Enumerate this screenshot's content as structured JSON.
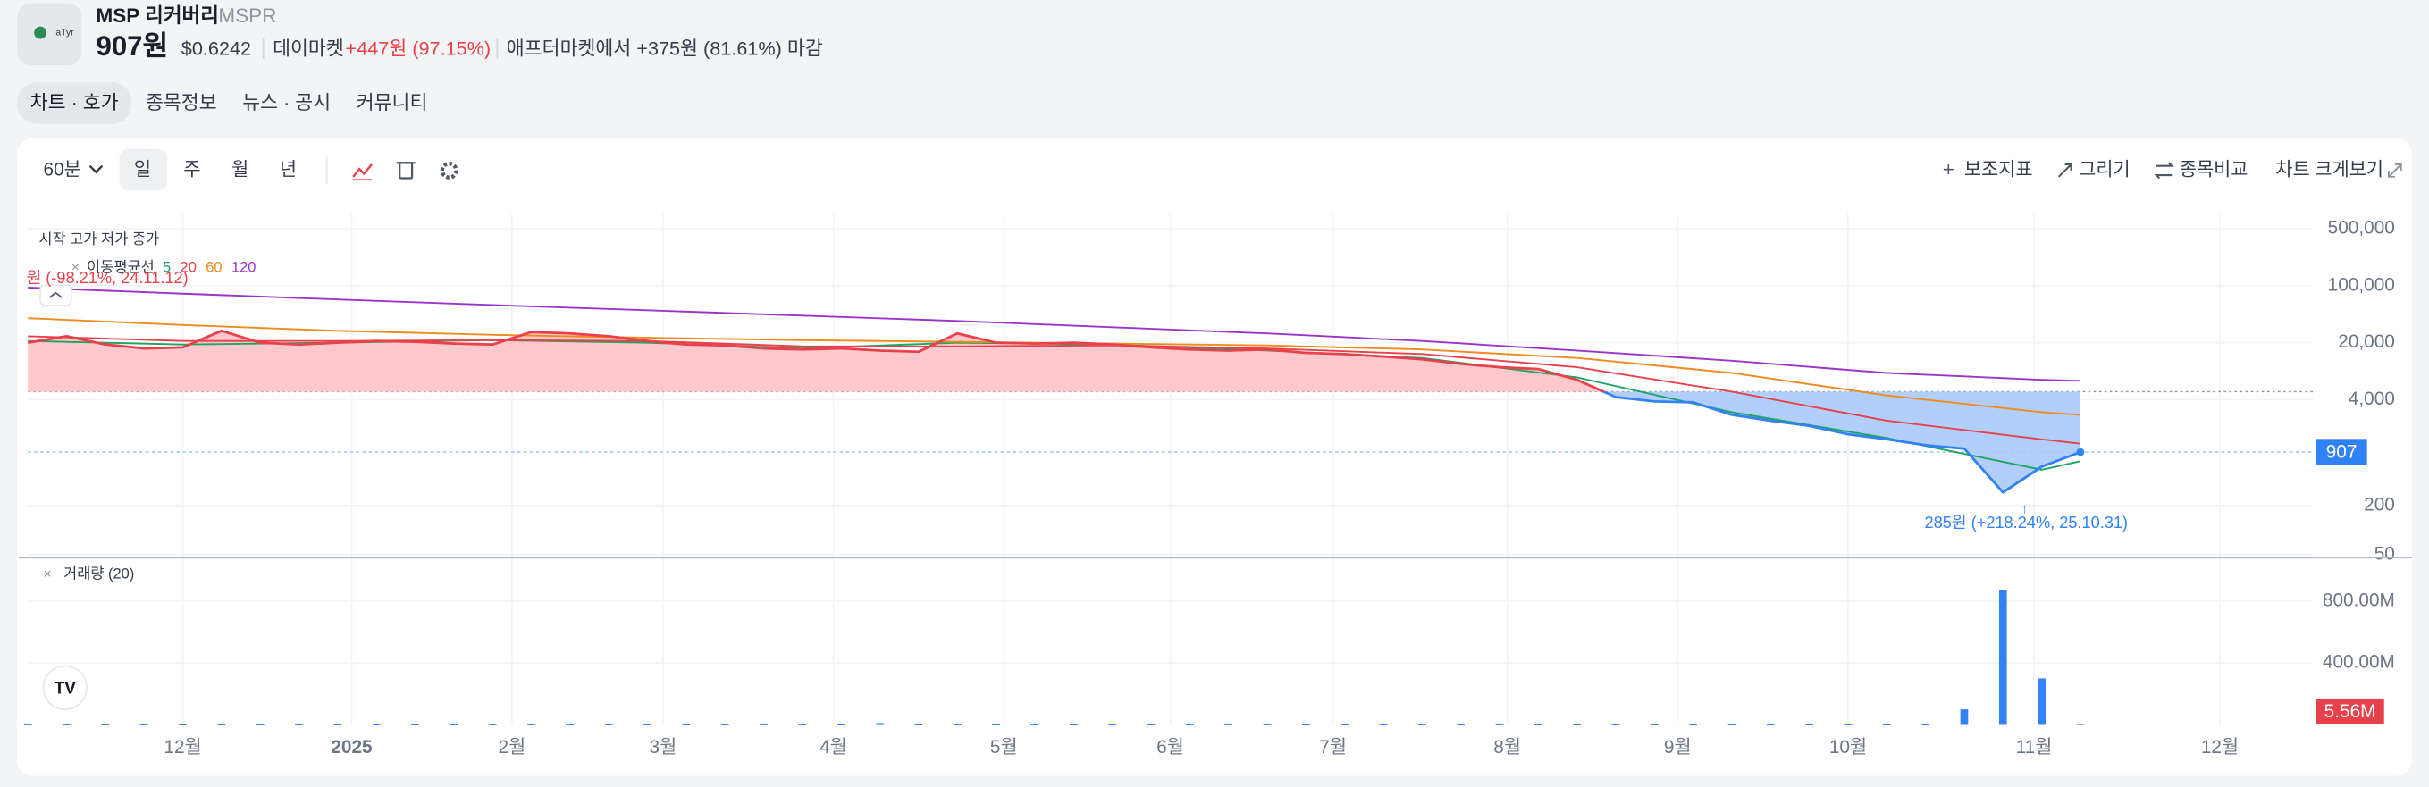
{
  "header": {
    "logo_text": "aTyr",
    "name": "MSP 리커버리",
    "ticker": "MSPR",
    "price": "907원",
    "usd_price": "$0.6242",
    "session": "데이마켓",
    "change": "+447원 (97.15%)",
    "after_market": "애프터마켓에서 +375원 (81.61%) 마감"
  },
  "tabs": [
    "차트 · 호가",
    "종목정보",
    "뉴스 · 공시",
    "커뮤니티"
  ],
  "toolbar": {
    "interval": "60분",
    "periods": [
      "일",
      "주",
      "월",
      "년"
    ],
    "actions": [
      "보조지표",
      "그리기",
      "종목비교",
      "차트 크게보기"
    ]
  },
  "chart_data": {
    "type": "line",
    "ohlc_label": "시작 고가 저가 종가",
    "ma_label": "이동평균선",
    "volume_label": "거래량 (20)",
    "log_scale": true,
    "grid": true,
    "xlim": [
      0,
      59
    ],
    "xticks": [
      {
        "value": 4,
        "label": "12월"
      },
      {
        "value": 8.36,
        "label": "2025"
      },
      {
        "value": 12.5,
        "label": "2월"
      },
      {
        "value": 16.4,
        "label": "3월"
      },
      {
        "value": 20.8,
        "label": "4월"
      },
      {
        "value": 25.2,
        "label": "5월"
      },
      {
        "value": 29.5,
        "label": "6월"
      },
      {
        "value": 33.7,
        "label": "7월"
      },
      {
        "value": 38.2,
        "label": "8월"
      },
      {
        "value": 42.6,
        "label": "9월"
      },
      {
        "value": 47,
        "label": "10월"
      },
      {
        "value": 51.8,
        "label": "11월"
      },
      {
        "value": 56.6,
        "label": "12월"
      }
    ],
    "ylim": [
      50,
      700000
    ],
    "yticks": [
      {
        "value": 500000,
        "label": "500,000"
      },
      {
        "value": 100000,
        "label": "100,000"
      },
      {
        "value": 20000,
        "label": "20,000"
      },
      {
        "value": 4000,
        "label": "4,000"
      },
      200,
      50
    ],
    "baseline": 5000,
    "current_price": 907,
    "price": {
      "color_above": "#e8414b",
      "color_below": "#3182f6",
      "fill_above": "#ffc2c7",
      "fill_below": "#a9c9fb",
      "values": [
        20000,
        24000,
        19000,
        17000,
        17500,
        28000,
        20000,
        19000,
        20000,
        21000,
        20500,
        19500,
        19000,
        27000,
        26000,
        24000,
        21000,
        19000,
        18500,
        17000,
        16500,
        17000,
        16000,
        15500,
        26000,
        20000,
        19500,
        20000,
        19000,
        17500,
        16500,
        16000,
        16500,
        15000,
        14500,
        13500,
        12500,
        11000,
        10000,
        9500,
        7000,
        4300,
        3800,
        3700,
        2600,
        2200,
        1900,
        1500,
        1300,
        1100,
        1000,
        290,
        600,
        907
      ]
    },
    "ma": [
      {
        "name": "5",
        "color": "#1fa463",
        "x": [
          0,
          4,
          8,
          12,
          16,
          20,
          24,
          28,
          32,
          36,
          40,
          44,
          48,
          52,
          53
        ],
        "values": [
          21000,
          19000,
          20000,
          21500,
          20000,
          17000,
          20000,
          19000,
          16000,
          13000,
          7500,
          2800,
          1350,
          550,
          700
        ]
      },
      {
        "name": "20",
        "color": "#e8414b",
        "x": [
          0,
          4,
          8,
          12,
          16,
          20,
          24,
          28,
          32,
          36,
          40,
          44,
          48,
          52,
          53
        ],
        "values": [
          24000,
          21000,
          21000,
          21500,
          21000,
          18000,
          18000,
          18500,
          17000,
          14500,
          10000,
          5000,
          2200,
          1300,
          1150
        ]
      },
      {
        "name": "60",
        "color": "#f08a1c",
        "x": [
          0,
          4,
          8,
          12,
          16,
          20,
          24,
          28,
          32,
          36,
          40,
          44,
          48,
          52,
          53
        ],
        "values": [
          40000,
          33000,
          28000,
          25000,
          23000,
          21500,
          20500,
          19500,
          18500,
          16500,
          13000,
          8500,
          4500,
          2800,
          2600
        ]
      },
      {
        "name": "120",
        "color": "#9b35c9",
        "x": [
          0,
          4,
          8,
          12,
          16,
          20,
          24,
          28,
          32,
          36,
          40,
          44,
          48,
          52,
          53
        ],
        "values": [
          95000,
          80000,
          68000,
          58000,
          50000,
          43000,
          37000,
          31000,
          26000,
          21000,
          16000,
          12000,
          8500,
          7000,
          6800
        ]
      }
    ],
    "annotations": [
      {
        "text": "원 (-98.21%, 24.11.12)",
        "color": "#e8414b"
      },
      {
        "text": "285원 (+218.24%, 25.10.31)",
        "color": "#3182f6"
      }
    ],
    "volume": {
      "color": "#3182f6",
      "ylim": [
        0,
        1080000000
      ],
      "yticks": [
        {
          "value": 800000000,
          "label": "800.00M"
        },
        {
          "value": 400000000,
          "label": "400.00M"
        }
      ],
      "current": {
        "value": 5560000,
        "label": "5.56M"
      },
      "values": [
        3000000,
        3000000,
        3000000,
        3000000,
        3000000,
        3000000,
        3000000,
        3000000,
        3000000,
        3000000,
        3000000,
        3000000,
        3000000,
        3000000,
        3000000,
        3000000,
        3000000,
        3000000,
        3000000,
        3000000,
        3000000,
        3000000,
        12000000,
        3000000,
        3000000,
        3000000,
        3000000,
        3000000,
        3000000,
        3000000,
        3000000,
        3000000,
        3000000,
        3000000,
        3000000,
        3000000,
        3000000,
        3000000,
        3000000,
        3000000,
        3000000,
        3000000,
        3000000,
        3000000,
        3000000,
        3000000,
        3000000,
        3000000,
        3000000,
        3000000,
        100000000,
        870000000,
        300000000,
        5560000
      ]
    }
  }
}
